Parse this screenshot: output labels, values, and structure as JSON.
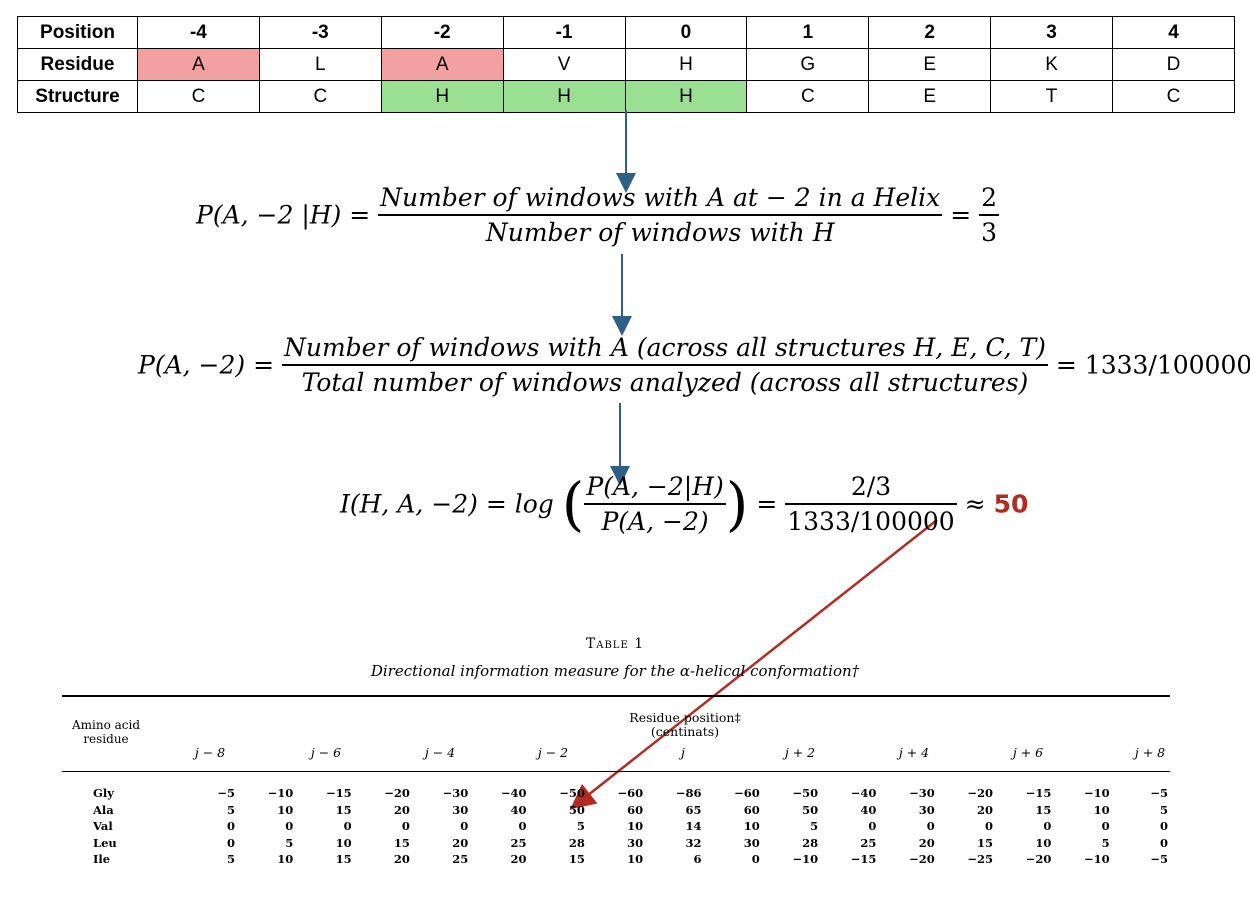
{
  "window_table": {
    "rows": [
      {
        "label": "Position",
        "cells": [
          "-4",
          "-3",
          "-2",
          "-1",
          "0",
          "1",
          "2",
          "3",
          "4"
        ]
      },
      {
        "label": "Residue",
        "cells": [
          "A",
          "L",
          "A",
          "V",
          "H",
          "G",
          "E",
          "K",
          "D"
        ]
      },
      {
        "label": "Structure",
        "cells": [
          "C",
          "C",
          "H",
          "H",
          "H",
          "C",
          "E",
          "T",
          "C"
        ]
      }
    ],
    "highlight_colors": {
      "residue_match": "#f2a0a0",
      "helix": "#9bdf93"
    }
  },
  "eq1": {
    "lhs": "P(A, −2 |H) =",
    "numerator": "Number of windows with A at  − 2 in a Helix",
    "denominator": "Number of windows with H",
    "eq": "=",
    "val_num": "2",
    "val_den": "3"
  },
  "eq2": {
    "lhs": "P(A, −2) =",
    "numerator": "Number of windows with A (across all structures H, E, C, T)",
    "denominator": "Total number of windows analyzed (across all structures)",
    "rhs": "= 1333/100000"
  },
  "eq3": {
    "lhs": "I(H, A, −2) = log",
    "inner_num": "P(A, −2|H)",
    "inner_den": "P(A, −2)",
    "eq": "=",
    "val_num": "2/3",
    "val_den": "1333/100000",
    "approx": "≈",
    "result": "50"
  },
  "arrow_color": "#2e5f86",
  "highlight_arrow_color": "#b22a20",
  "paper_table": {
    "title": "Table 1",
    "caption": "Directional information measure for the α-helical conformation†",
    "row_header": "Amino acid residue",
    "col_header": "Residue position‡",
    "col_unit": "(centinats)",
    "columns": [
      "j − 8",
      "j − 6",
      "j − 4",
      "j − 2",
      "j",
      "j + 2",
      "j + 4",
      "j + 6",
      "j + 8"
    ],
    "rows": [
      {
        "name": "Gly",
        "values": [
          "−5",
          "−10",
          "−15",
          "−20",
          "−30",
          "−40",
          "−50",
          "−60",
          "−86",
          "−60",
          "−50",
          "−40",
          "−30",
          "−20",
          "−15",
          "−10",
          "−5"
        ]
      },
      {
        "name": "Ala",
        "values": [
          "5",
          "10",
          "15",
          "20",
          "30",
          "40",
          "50",
          "60",
          "65",
          "60",
          "50",
          "40",
          "30",
          "20",
          "15",
          "10",
          "5"
        ]
      },
      {
        "name": "Val",
        "values": [
          "0",
          "0",
          "0",
          "0",
          "0",
          "0",
          "5",
          "10",
          "14",
          "10",
          "5",
          "0",
          "0",
          "0",
          "0",
          "0",
          "0"
        ]
      },
      {
        "name": "Leu",
        "values": [
          "0",
          "5",
          "10",
          "15",
          "20",
          "25",
          "28",
          "30",
          "32",
          "30",
          "28",
          "25",
          "20",
          "15",
          "10",
          "5",
          "0"
        ]
      },
      {
        "name": "Ile",
        "values": [
          "5",
          "10",
          "15",
          "20",
          "25",
          "20",
          "15",
          "10",
          "6",
          "0",
          "−10",
          "−15",
          "−20",
          "−25",
          "−20",
          "−10",
          "−5"
        ]
      }
    ]
  }
}
